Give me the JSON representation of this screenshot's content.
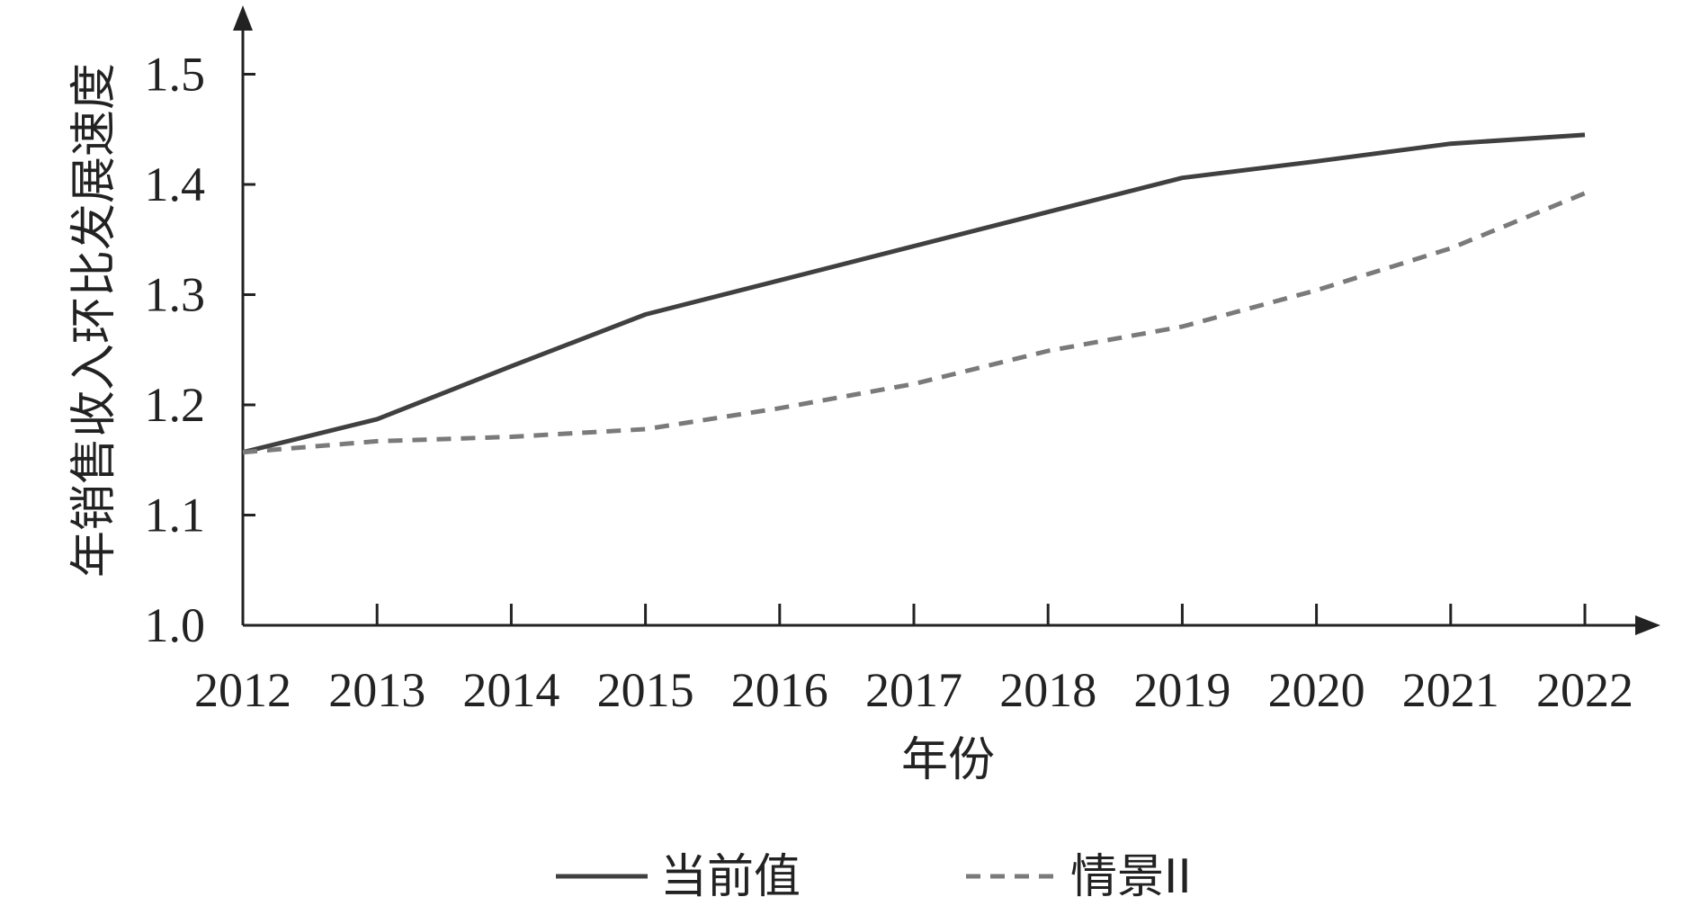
{
  "chart_data": {
    "type": "line",
    "title": "",
    "xlabel": "年份",
    "ylabel": "年销售收入环比发展速度",
    "categories": [
      "2012",
      "2013",
      "2014",
      "2015",
      "2016",
      "2017",
      "2018",
      "2019",
      "2020",
      "2021",
      "2022"
    ],
    "yticks": [
      "1.0",
      "1.1",
      "1.2",
      "1.3",
      "1.4",
      "1.5"
    ],
    "ylim": [
      1.0,
      1.55
    ],
    "grid": false,
    "legend_position": "bottom",
    "series": [
      {
        "name": "当前值",
        "style": "solid",
        "color": "#404040",
        "values": [
          1.157,
          1.187,
          1.235,
          1.282,
          1.313,
          1.344,
          1.375,
          1.406,
          1.421,
          1.437,
          1.445
        ]
      },
      {
        "name": "情景II",
        "style": "dashed",
        "color": "#7a7a7a",
        "values": [
          1.157,
          1.167,
          1.171,
          1.178,
          1.197,
          1.219,
          1.249,
          1.271,
          1.304,
          1.342,
          1.392
        ]
      }
    ]
  }
}
